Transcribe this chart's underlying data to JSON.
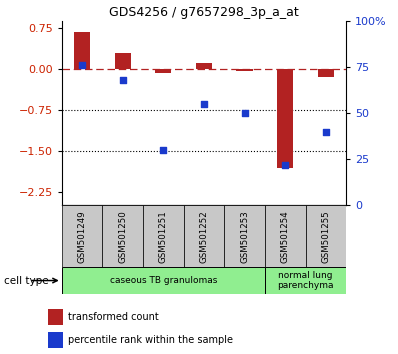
{
  "title": "GDS4256 / g7657298_3p_a_at",
  "samples": [
    "GSM501249",
    "GSM501250",
    "GSM501251",
    "GSM501252",
    "GSM501253",
    "GSM501254",
    "GSM501255"
  ],
  "red_bars": [
    0.68,
    0.28,
    -0.08,
    0.1,
    -0.05,
    -1.82,
    -0.15
  ],
  "blue_dots_pct": [
    76,
    68,
    30,
    55,
    50,
    22,
    40
  ],
  "left_ylim": [
    -2.5,
    0.87
  ],
  "left_yticks": [
    0.75,
    0.0,
    -0.75,
    -1.5,
    -2.25
  ],
  "right_ylim": [
    0,
    100
  ],
  "right_yticks": [
    0,
    25,
    50,
    75,
    100
  ],
  "right_ytick_labels": [
    "0",
    "25",
    "50",
    "75",
    "100%"
  ],
  "dotted_hlines": [
    -0.75,
    -1.5
  ],
  "bar_color": "#b22222",
  "dot_color": "#1a3acc",
  "tick_color_left": "#cc2200",
  "tick_color_right": "#1a3acc",
  "cell_groups": [
    {
      "start": 0,
      "end": 4,
      "label": "caseous TB granulomas"
    },
    {
      "start": 5,
      "end": 6,
      "label": "normal lung\nparenchyma"
    }
  ],
  "legend_red": "transformed count",
  "legend_blue": "percentile rank within the sample",
  "green_color": "#90ee90",
  "gray_color": "#c8c8c8"
}
